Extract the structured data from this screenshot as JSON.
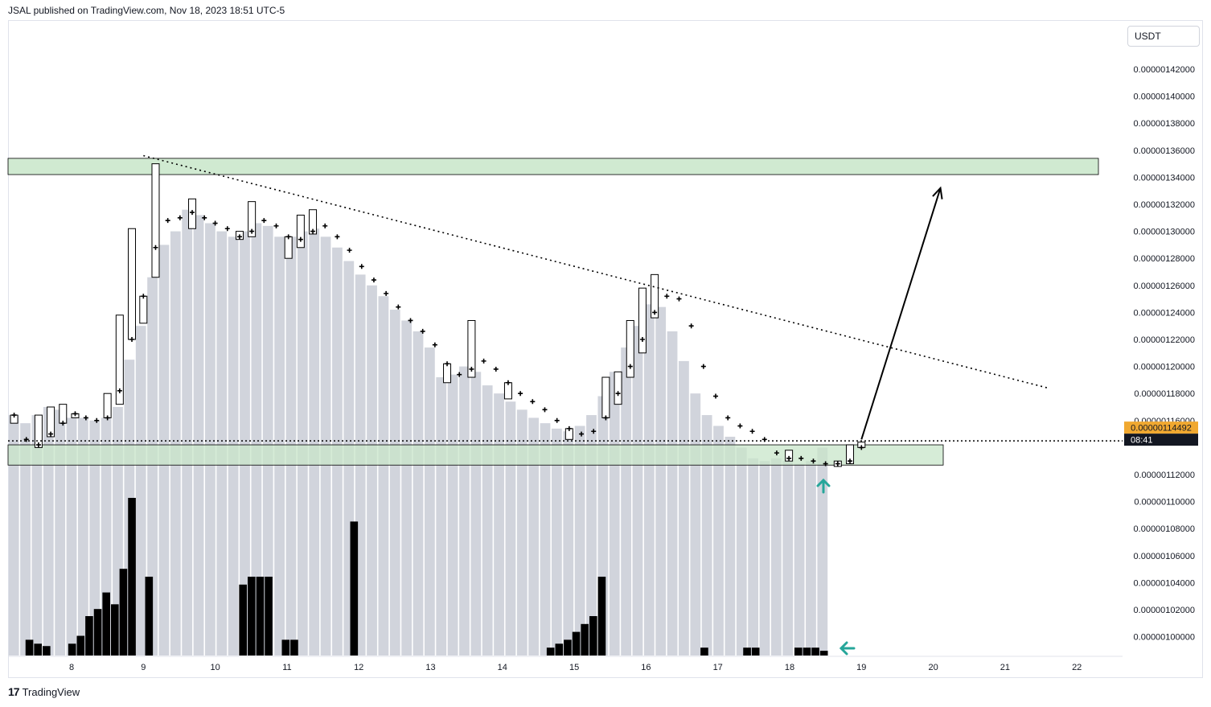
{
  "header": {
    "publisher": "JSAL published on TradingView.com, Nov 18, 2023 18:51 UTC-5"
  },
  "quote_currency": "USDT",
  "price_badge": {
    "price": "0.00000114492",
    "countdown": "08:41",
    "color": "#f0a830"
  },
  "footer": {
    "brand": "TradingView",
    "logo_glyph": "17"
  },
  "colors": {
    "profile": "#d1d4dc",
    "volume": "#000000",
    "zone": "#c8e6c9",
    "arrow": "#26a69a"
  },
  "chart_data": {
    "type": "candlestick",
    "y_ticks": [
      "0.00000142000",
      "0.00000140000",
      "0.00000138000",
      "0.00000136000",
      "0.00000134000",
      "0.00000132000",
      "0.00000130000",
      "0.00000128000",
      "0.00000126000",
      "0.00000124000",
      "0.00000122000",
      "0.00000120000",
      "0.00000118000",
      "0.00000116000",
      "0.00000112000",
      "0.00000110000",
      "0.00000108000",
      "0.00000106000",
      "0.00000104000",
      "0.00000102000",
      "0.00000100000"
    ],
    "x_ticks": [
      "8",
      "9",
      "10",
      "11",
      "12",
      "13",
      "14",
      "15",
      "16",
      "17",
      "18",
      "19",
      "20",
      "21",
      "22"
    ],
    "ylim": [
      9.86e-07,
      1.44e-06
    ],
    "y_unit_e9": true,
    "x_range_days": [
      7.15,
      22.5
    ],
    "candles": [
      {
        "x": 7.2,
        "o": 1164,
        "h": 1164,
        "l": 1158,
        "c": 1164
      },
      {
        "x": 7.37,
        "o": 1148,
        "h": 1148,
        "l": 1146,
        "c": 1146
      },
      {
        "x": 7.54,
        "o": 1142,
        "h": 1164,
        "l": 1140,
        "c": 1142
      },
      {
        "x": 7.71,
        "o": 1150,
        "h": 1170,
        "l": 1148,
        "c": 1150
      },
      {
        "x": 7.88,
        "o": 1158,
        "h": 1172,
        "l": 1158,
        "c": 1158
      },
      {
        "x": 8.05,
        "o": 1165,
        "h": 1165,
        "l": 1162,
        "c": 1165
      },
      {
        "x": 8.2,
        "o": 1162,
        "h": 1162,
        "l": 1160,
        "c": 1162
      },
      {
        "x": 8.35,
        "o": 1160,
        "h": 1160,
        "l": 1158,
        "c": 1160
      },
      {
        "x": 8.5,
        "o": 1162,
        "h": 1180,
        "l": 1162,
        "c": 1162
      },
      {
        "x": 8.67,
        "o": 1182,
        "h": 1238,
        "l": 1172,
        "c": 1182
      },
      {
        "x": 8.84,
        "o": 1220,
        "h": 1302,
        "l": 1220,
        "c": 1220
      },
      {
        "x": 9.0,
        "o": 1252,
        "h": 1252,
        "l": 1232,
        "c": 1252
      },
      {
        "x": 9.17,
        "o": 1288,
        "h": 1350,
        "l": 1266,
        "c": 1288
      },
      {
        "x": 9.34,
        "o": 1308,
        "h": 1308,
        "l": 1306,
        "c": 1308
      },
      {
        "x": 9.51,
        "o": 1310,
        "h": 1310,
        "l": 1308,
        "c": 1310
      },
      {
        "x": 9.68,
        "o": 1314,
        "h": 1324,
        "l": 1302,
        "c": 1314
      },
      {
        "x": 9.85,
        "o": 1310,
        "h": 1310,
        "l": 1308,
        "c": 1310
      },
      {
        "x": 10.0,
        "o": 1306,
        "h": 1306,
        "l": 1304,
        "c": 1306
      },
      {
        "x": 10.17,
        "o": 1302,
        "h": 1302,
        "l": 1300,
        "c": 1302
      },
      {
        "x": 10.34,
        "o": 1296,
        "h": 1300,
        "l": 1294,
        "c": 1296
      },
      {
        "x": 10.51,
        "o": 1300,
        "h": 1322,
        "l": 1296,
        "c": 1300
      },
      {
        "x": 10.68,
        "o": 1308,
        "h": 1308,
        "l": 1306,
        "c": 1308
      },
      {
        "x": 10.85,
        "o": 1304,
        "h": 1304,
        "l": 1302,
        "c": 1304
      },
      {
        "x": 11.02,
        "o": 1296,
        "h": 1296,
        "l": 1280,
        "c": 1296
      },
      {
        "x": 11.19,
        "o": 1294,
        "h": 1312,
        "l": 1288,
        "c": 1294
      },
      {
        "x": 11.36,
        "o": 1300,
        "h": 1316,
        "l": 1298,
        "c": 1300
      },
      {
        "x": 11.53,
        "o": 1304,
        "h": 1304,
        "l": 1302,
        "c": 1304
      },
      {
        "x": 11.7,
        "o": 1296,
        "h": 1296,
        "l": 1294,
        "c": 1296
      },
      {
        "x": 11.87,
        "o": 1286,
        "h": 1286,
        "l": 1284,
        "c": 1286
      },
      {
        "x": 12.04,
        "o": 1274,
        "h": 1274,
        "l": 1272,
        "c": 1274
      },
      {
        "x": 12.21,
        "o": 1264,
        "h": 1264,
        "l": 1262,
        "c": 1264
      },
      {
        "x": 12.38,
        "o": 1254,
        "h": 1254,
        "l": 1252,
        "c": 1254
      },
      {
        "x": 12.55,
        "o": 1244,
        "h": 1244,
        "l": 1242,
        "c": 1244
      },
      {
        "x": 12.72,
        "o": 1234,
        "h": 1234,
        "l": 1232,
        "c": 1234
      },
      {
        "x": 12.89,
        "o": 1226,
        "h": 1226,
        "l": 1224,
        "c": 1226
      },
      {
        "x": 13.06,
        "o": 1216,
        "h": 1216,
        "l": 1214,
        "c": 1216
      },
      {
        "x": 13.23,
        "o": 1202,
        "h": 1202,
        "l": 1188,
        "c": 1202
      },
      {
        "x": 13.4,
        "o": 1194,
        "h": 1194,
        "l": 1192,
        "c": 1194
      },
      {
        "x": 13.57,
        "o": 1198,
        "h": 1234,
        "l": 1192,
        "c": 1198
      },
      {
        "x": 13.74,
        "o": 1204,
        "h": 1204,
        "l": 1202,
        "c": 1204
      },
      {
        "x": 13.91,
        "o": 1198,
        "h": 1198,
        "l": 1196,
        "c": 1198
      },
      {
        "x": 14.08,
        "o": 1188,
        "h": 1188,
        "l": 1176,
        "c": 1188
      },
      {
        "x": 14.25,
        "o": 1180,
        "h": 1180,
        "l": 1178,
        "c": 1180
      },
      {
        "x": 14.42,
        "o": 1174,
        "h": 1174,
        "l": 1172,
        "c": 1174
      },
      {
        "x": 14.59,
        "o": 1168,
        "h": 1168,
        "l": 1166,
        "c": 1168
      },
      {
        "x": 14.76,
        "o": 1160,
        "h": 1160,
        "l": 1158,
        "c": 1160
      },
      {
        "x": 14.93,
        "o": 1154,
        "h": 1154,
        "l": 1146,
        "c": 1154
      },
      {
        "x": 15.1,
        "o": 1150,
        "h": 1150,
        "l": 1148,
        "c": 1150
      },
      {
        "x": 15.27,
        "o": 1152,
        "h": 1152,
        "l": 1150,
        "c": 1152
      },
      {
        "x": 15.44,
        "o": 1162,
        "h": 1192,
        "l": 1162,
        "c": 1162
      },
      {
        "x": 15.61,
        "o": 1180,
        "h": 1196,
        "l": 1172,
        "c": 1180
      },
      {
        "x": 15.78,
        "o": 1200,
        "h": 1234,
        "l": 1192,
        "c": 1200
      },
      {
        "x": 15.95,
        "o": 1220,
        "h": 1258,
        "l": 1210,
        "c": 1220
      },
      {
        "x": 16.12,
        "o": 1240,
        "h": 1268,
        "l": 1236,
        "c": 1240
      },
      {
        "x": 16.29,
        "o": 1252,
        "h": 1252,
        "l": 1250,
        "c": 1252
      },
      {
        "x": 16.46,
        "o": 1250,
        "h": 1250,
        "l": 1248,
        "c": 1250
      },
      {
        "x": 16.63,
        "o": 1230,
        "h": 1230,
        "l": 1228,
        "c": 1230
      },
      {
        "x": 16.8,
        "o": 1200,
        "h": 1200,
        "l": 1198,
        "c": 1200
      },
      {
        "x": 16.97,
        "o": 1178,
        "h": 1178,
        "l": 1176,
        "c": 1178
      },
      {
        "x": 17.14,
        "o": 1162,
        "h": 1162,
        "l": 1160,
        "c": 1162
      },
      {
        "x": 17.31,
        "o": 1156,
        "h": 1156,
        "l": 1154,
        "c": 1156
      },
      {
        "x": 17.48,
        "o": 1152,
        "h": 1152,
        "l": 1150,
        "c": 1152
      },
      {
        "x": 17.65,
        "o": 1146,
        "h": 1146,
        "l": 1144,
        "c": 1146
      },
      {
        "x": 17.82,
        "o": 1136,
        "h": 1136,
        "l": 1134,
        "c": 1136
      },
      {
        "x": 17.99,
        "o": 1132,
        "h": 1138,
        "l": 1130,
        "c": 1132
      },
      {
        "x": 18.16,
        "o": 1132,
        "h": 1132,
        "l": 1130,
        "c": 1132
      },
      {
        "x": 18.33,
        "o": 1130,
        "h": 1130,
        "l": 1128,
        "c": 1130
      },
      {
        "x": 18.5,
        "o": 1128,
        "h": 1128,
        "l": 1126,
        "c": 1128
      },
      {
        "x": 18.67,
        "o": 1128,
        "h": 1130,
        "l": 1126,
        "c": 1128
      },
      {
        "x": 18.84,
        "o": 1130,
        "h": 1142,
        "l": 1128,
        "c": 1130
      },
      {
        "x": 19.0,
        "o": 1140,
        "h": 1144,
        "l": 1140,
        "c": 1140
      }
    ],
    "volume_profile_bars": [
      1164,
      1158,
      1164,
      1170,
      1168,
      1162,
      1162,
      1160,
      1162,
      1170,
      1205,
      1230,
      1266,
      1290,
      1300,
      1316,
      1312,
      1306,
      1300,
      1296,
      1300,
      1306,
      1304,
      1296,
      1296,
      1300,
      1302,
      1296,
      1288,
      1278,
      1268,
      1260,
      1252,
      1242,
      1234,
      1226,
      1214,
      1192,
      1194,
      1200,
      1196,
      1186,
      1180,
      1174,
      1168,
      1162,
      1158,
      1154,
      1152,
      1156,
      1164,
      1178,
      1196,
      1214,
      1230,
      1246,
      1244,
      1226,
      1204,
      1180,
      1164,
      1156,
      1148,
      1140,
      1132,
      1130,
      1132,
      1130,
      1128,
      1130,
      1140
    ],
    "volume": [
      0,
      0,
      2,
      1.5,
      1.2,
      0,
      0,
      1.5,
      2.5,
      5,
      5.9,
      8,
      6.5,
      11,
      20,
      0,
      10,
      0,
      0,
      0,
      0,
      0,
      0,
      0,
      0,
      0,
      0,
      9,
      10,
      10,
      10,
      0,
      2,
      2,
      0,
      0,
      0,
      0,
      0,
      0,
      17,
      0,
      0,
      0,
      0,
      0,
      0,
      0,
      0,
      0,
      0,
      0,
      0,
      0,
      0,
      0,
      0,
      0,
      0,
      0,
      0,
      0,
      0,
      1,
      1.5,
      2,
      3,
      4,
      5,
      10,
      0,
      0,
      0,
      0,
      0,
      0,
      0,
      0,
      0,
      0,
      0,
      1,
      0,
      0,
      0,
      0,
      1,
      1,
      0,
      0,
      0,
      0,
      1,
      1,
      1,
      0.6
    ],
    "resistance_zone": [
      1342,
      1354
    ],
    "support_zone": [
      1127,
      1142
    ],
    "current_price": 1144.92,
    "trendline": {
      "from": [
        9.0,
        1356
      ],
      "to": [
        21.6,
        1184
      ]
    },
    "projection_arrow": {
      "from": [
        19.0,
        1146
      ],
      "to": [
        20.1,
        1332
      ]
    }
  }
}
